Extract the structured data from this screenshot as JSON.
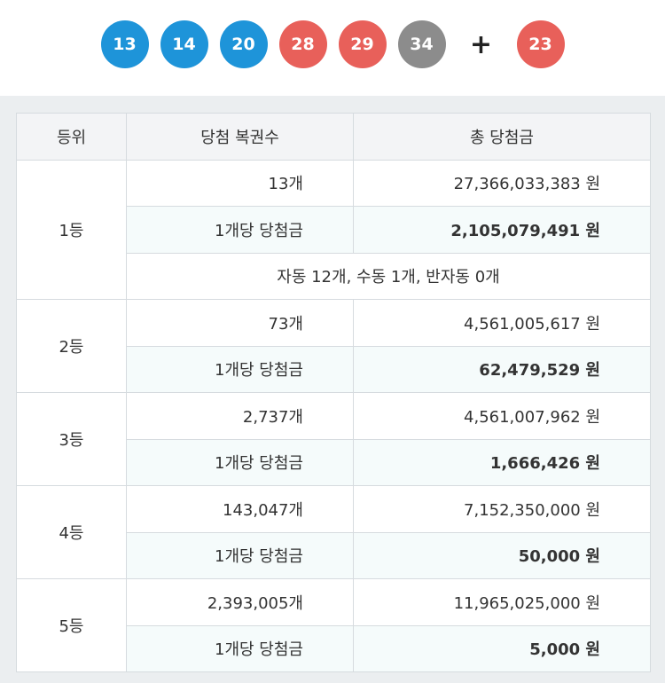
{
  "balls": [
    {
      "number": "13",
      "color": "#1e94d9"
    },
    {
      "number": "14",
      "color": "#1e94d9"
    },
    {
      "number": "20",
      "color": "#1e94d9"
    },
    {
      "number": "28",
      "color": "#e8605a"
    },
    {
      "number": "29",
      "color": "#e8605a"
    },
    {
      "number": "34",
      "color": "#8c8c8c"
    }
  ],
  "plus_symbol": "+",
  "bonus": {
    "number": "23",
    "color": "#e8605a"
  },
  "table": {
    "headers": [
      "등위",
      "당첨 복권수",
      "총 당첨금"
    ],
    "per_label": "1개당 당첨금",
    "rows": [
      {
        "rank": "1등",
        "count": "13개",
        "total": "27,366,033,383 원",
        "per": "2,105,079,491 원",
        "note": "자동 12개, 수동 1개, 반자동 0개"
      },
      {
        "rank": "2등",
        "count": "73개",
        "total": "4,561,005,617 원",
        "per": "62,479,529 원"
      },
      {
        "rank": "3등",
        "count": "2,737개",
        "total": "4,561,007,962 원",
        "per": "1,666,426 원"
      },
      {
        "rank": "4등",
        "count": "143,047개",
        "total": "7,152,350,000 원",
        "per": "50,000 원"
      },
      {
        "rank": "5등",
        "count": "2,393,005개",
        "total": "11,965,025,000 원",
        "per": "5,000 원"
      }
    ]
  }
}
